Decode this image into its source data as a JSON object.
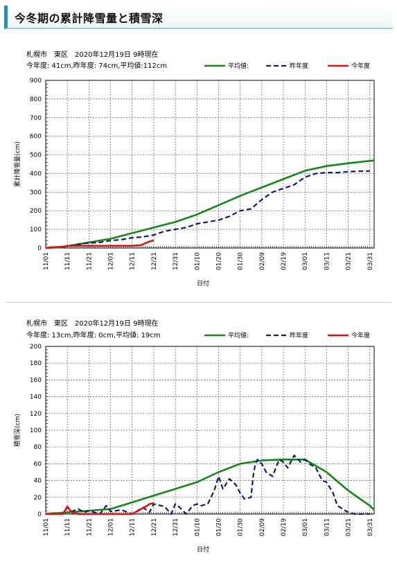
{
  "page": {
    "title": "今冬期の累計降雪量と積雪深"
  },
  "charts": [
    {
      "header_line1": "札幌市　東区　2020年12月19日 9時現在",
      "header_line2": "今年度: 41cm,昨年度: 74cm,平均値:112cm",
      "ylabel": "累計降雪量(cm)",
      "xlabel": "日付"
    },
    {
      "header_line1": "札幌市　東区　2020年12月19日 9時現在",
      "header_line2": "今年度: 13cm,昨年度:  0cm,平均値: 19cm",
      "ylabel": "積雪深(cm)",
      "xlabel": "日付"
    }
  ],
  "legend": {
    "avg": "平均値:",
    "last": "昨年度",
    "this": "今年度"
  },
  "colors": {
    "avg": "#118811",
    "last": "#0a1c6e",
    "this": "#dd1111",
    "accent": "#2f8db0"
  },
  "chart_data": [
    {
      "type": "line",
      "title": "札幌市　東区　2020年12月19日 9時現在",
      "ylabel": "累計降雪量(cm)",
      "xlabel": "日付",
      "xlim": [
        0,
        152
      ],
      "ylim": [
        0,
        900
      ],
      "yticks": [
        0,
        100,
        200,
        300,
        400,
        500,
        600,
        700,
        800,
        900
      ],
      "xticks": [
        "11/01",
        "11/11",
        "11/21",
        "12/01",
        "12/11",
        "12/21",
        "12/31",
        "01/10",
        "01/20",
        "01/30",
        "02/09",
        "02/19",
        "03/01",
        "03/11",
        "03/21",
        "03/31"
      ],
      "grid": true,
      "legend_position": "top-right",
      "series": [
        {
          "name": "平均値:",
          "x": [
            0,
            10,
            20,
            30,
            40,
            50,
            60,
            70,
            80,
            90,
            100,
            110,
            120,
            130,
            140,
            150,
            152
          ],
          "y": [
            0,
            10,
            30,
            50,
            80,
            110,
            140,
            180,
            230,
            280,
            325,
            370,
            415,
            440,
            455,
            468,
            470
          ]
        },
        {
          "name": "昨年度",
          "x": [
            0,
            8,
            12,
            18,
            25,
            30,
            35,
            40,
            45,
            50,
            55,
            60,
            65,
            70,
            75,
            80,
            85,
            90,
            95,
            100,
            105,
            110,
            115,
            120,
            125,
            130,
            135,
            140,
            145,
            150
          ],
          "y": [
            0,
            5,
            15,
            25,
            30,
            40,
            45,
            55,
            60,
            70,
            90,
            100,
            110,
            130,
            140,
            150,
            170,
            200,
            210,
            260,
            300,
            320,
            340,
            380,
            400,
            405,
            405,
            410,
            412,
            413
          ]
        },
        {
          "name": "今年度",
          "x": [
            0,
            8,
            10,
            15,
            20,
            30,
            40,
            44,
            46,
            48,
            50
          ],
          "y": [
            0,
            5,
            12,
            12,
            12,
            12,
            12,
            15,
            25,
            35,
            41
          ]
        }
      ]
    },
    {
      "type": "line",
      "title": "札幌市　東区　2020年12月19日 9時現在",
      "ylabel": "積雪深(cm)",
      "xlabel": "日付",
      "xlim": [
        0,
        152
      ],
      "ylim": [
        0,
        200
      ],
      "yticks": [
        0,
        20,
        40,
        60,
        80,
        100,
        120,
        140,
        160,
        180,
        200
      ],
      "xticks": [
        "11/01",
        "11/11",
        "11/21",
        "12/01",
        "12/11",
        "12/21",
        "12/31",
        "01/10",
        "01/20",
        "01/30",
        "02/09",
        "02/19",
        "03/01",
        "03/11",
        "03/21",
        "03/31"
      ],
      "grid": true,
      "legend_position": "top-right",
      "series": [
        {
          "name": "平均値:",
          "x": [
            0,
            10,
            20,
            30,
            40,
            50,
            60,
            70,
            80,
            90,
            100,
            110,
            120,
            130,
            140,
            150,
            152
          ],
          "y": [
            0,
            2,
            4,
            6,
            14,
            22,
            30,
            38,
            50,
            60,
            64,
            65,
            65,
            50,
            28,
            10,
            5
          ]
        },
        {
          "name": "昨年度",
          "x": [
            0,
            8,
            10,
            12,
            15,
            18,
            20,
            25,
            28,
            30,
            35,
            40,
            45,
            48,
            50,
            55,
            58,
            60,
            62,
            65,
            68,
            70,
            72,
            75,
            78,
            80,
            82,
            85,
            88,
            90,
            92,
            95,
            96,
            97,
            98,
            100,
            102,
            105,
            108,
            110,
            112,
            115,
            118,
            120,
            122,
            125,
            128,
            130,
            133,
            135,
            138,
            140,
            143,
            145,
            148,
            150
          ],
          "y": [
            0,
            0,
            8,
            3,
            6,
            2,
            4,
            0,
            10,
            3,
            5,
            0,
            8,
            2,
            12,
            9,
            0,
            12,
            8,
            0,
            10,
            12,
            10,
            12,
            28,
            45,
            30,
            42,
            35,
            25,
            18,
            20,
            45,
            60,
            65,
            60,
            50,
            45,
            65,
            62,
            55,
            70,
            62,
            65,
            60,
            55,
            40,
            38,
            25,
            10,
            5,
            2,
            0,
            0,
            0,
            0
          ]
        },
        {
          "name": "今年度",
          "x": [
            0,
            8,
            10,
            12,
            15,
            20,
            30,
            40,
            42,
            45,
            47,
            48,
            50
          ],
          "y": [
            0,
            0,
            9,
            2,
            0,
            0,
            0,
            0,
            3,
            7,
            10,
            12,
            13
          ]
        }
      ]
    }
  ]
}
